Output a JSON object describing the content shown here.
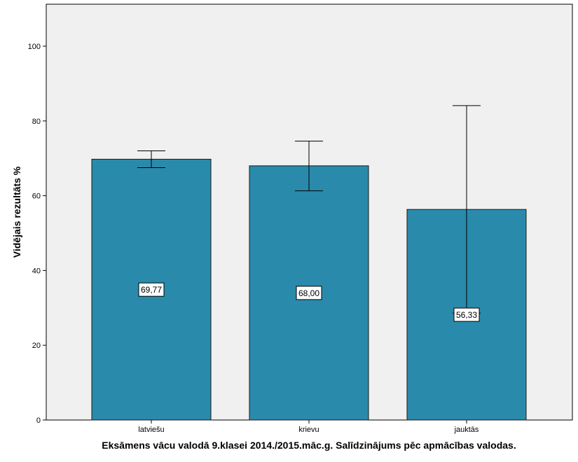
{
  "chart_data": {
    "type": "bar",
    "categories": [
      "latviešu",
      "krievu",
      "jauktās"
    ],
    "values": [
      69.77,
      68.0,
      56.33
    ],
    "value_labels": [
      "69,77",
      "68,00",
      "56,33"
    ],
    "error_bars": [
      {
        "low": 67.5,
        "high": 72.0
      },
      {
        "low": 61.3,
        "high": 74.6
      },
      {
        "low": 28.6,
        "high": 84.1
      }
    ],
    "xlabel": "Eksāmens vācu valodā 9.klasei 2014./2015.māc.g. Salīdzinājums pēc apmācības valodas.",
    "ylabel": "Vidējais rezultāts %",
    "ylim": [
      0,
      110
    ],
    "yticks": [
      0,
      20,
      40,
      60,
      80,
      100
    ],
    "grid": false,
    "colors": {
      "bar_fill": "#2a8aab",
      "bar_stroke": "#1a1a1a",
      "plot_background": "#f0f0f0"
    }
  }
}
